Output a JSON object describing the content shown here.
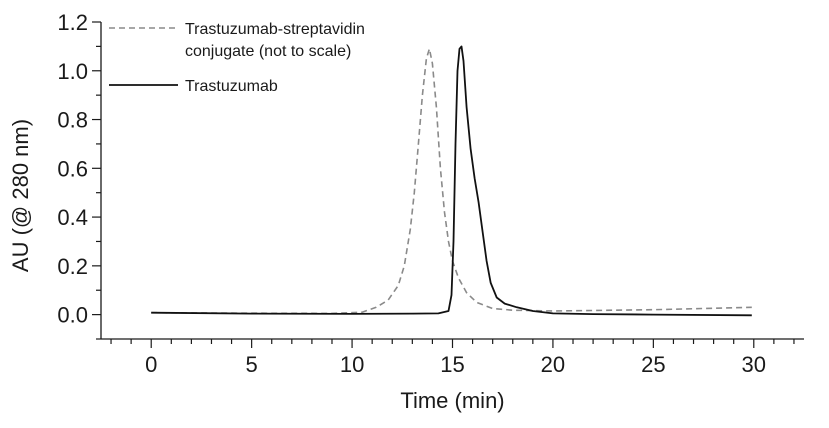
{
  "chart_data": {
    "type": "line",
    "title": "",
    "xlabel": "Time (min)",
    "ylabel": "AU (@ 280 nm)",
    "xlim": [
      -2.5,
      32.5
    ],
    "ylim": [
      -0.1,
      1.2
    ],
    "x_ticks": [
      0,
      5,
      10,
      15,
      20,
      25,
      30
    ],
    "x_tick_labels": [
      "0",
      "5",
      "10",
      "15",
      "20",
      "25",
      "30"
    ],
    "y_ticks": [
      0.0,
      0.2,
      0.4,
      0.6,
      0.8,
      1.0,
      1.2
    ],
    "y_tick_labels": [
      "0.0",
      "0.2",
      "0.4",
      "0.6",
      "0.8",
      "1.0",
      "1.2"
    ],
    "grid": false,
    "legend_position": "top-left",
    "series": [
      {
        "name": "Trastuzumab-streptavidin conjugate (not to scale)",
        "style": "dashed",
        "color": "#8a8a8a",
        "points": [
          [
            0,
            0.008
          ],
          [
            5,
            0.006
          ],
          [
            9,
            0.005
          ],
          [
            10.5,
            0.01
          ],
          [
            11.2,
            0.03
          ],
          [
            11.8,
            0.06
          ],
          [
            12.3,
            0.12
          ],
          [
            12.6,
            0.2
          ],
          [
            12.9,
            0.35
          ],
          [
            13.1,
            0.5
          ],
          [
            13.3,
            0.7
          ],
          [
            13.5,
            0.9
          ],
          [
            13.7,
            1.05
          ],
          [
            13.85,
            1.09
          ],
          [
            14.0,
            1.03
          ],
          [
            14.2,
            0.85
          ],
          [
            14.4,
            0.6
          ],
          [
            14.6,
            0.42
          ],
          [
            14.8,
            0.3
          ],
          [
            15.0,
            0.22
          ],
          [
            15.3,
            0.15
          ],
          [
            15.7,
            0.09
          ],
          [
            16.2,
            0.05
          ],
          [
            17.0,
            0.025
          ],
          [
            18.0,
            0.018
          ],
          [
            20,
            0.015
          ],
          [
            25,
            0.02
          ],
          [
            29.9,
            0.03
          ]
        ]
      },
      {
        "name": "Trastuzumab",
        "style": "solid",
        "color": "#111111",
        "points": [
          [
            0,
            0.008
          ],
          [
            5,
            0.004
          ],
          [
            10,
            0.003
          ],
          [
            13,
            0.004
          ],
          [
            14.3,
            0.005
          ],
          [
            14.8,
            0.015
          ],
          [
            14.95,
            0.08
          ],
          [
            15.05,
            0.3
          ],
          [
            15.15,
            0.7
          ],
          [
            15.25,
            1.0
          ],
          [
            15.35,
            1.09
          ],
          [
            15.45,
            1.1
          ],
          [
            15.55,
            1.04
          ],
          [
            15.7,
            0.85
          ],
          [
            15.9,
            0.68
          ],
          [
            16.1,
            0.56
          ],
          [
            16.3,
            0.46
          ],
          [
            16.5,
            0.34
          ],
          [
            16.7,
            0.22
          ],
          [
            16.9,
            0.13
          ],
          [
            17.2,
            0.07
          ],
          [
            17.6,
            0.045
          ],
          [
            18.2,
            0.03
          ],
          [
            19.0,
            0.015
          ],
          [
            20,
            0.005
          ],
          [
            22,
            0.002
          ],
          [
            25,
            0.0
          ],
          [
            29.9,
            -0.003
          ]
        ]
      }
    ]
  }
}
